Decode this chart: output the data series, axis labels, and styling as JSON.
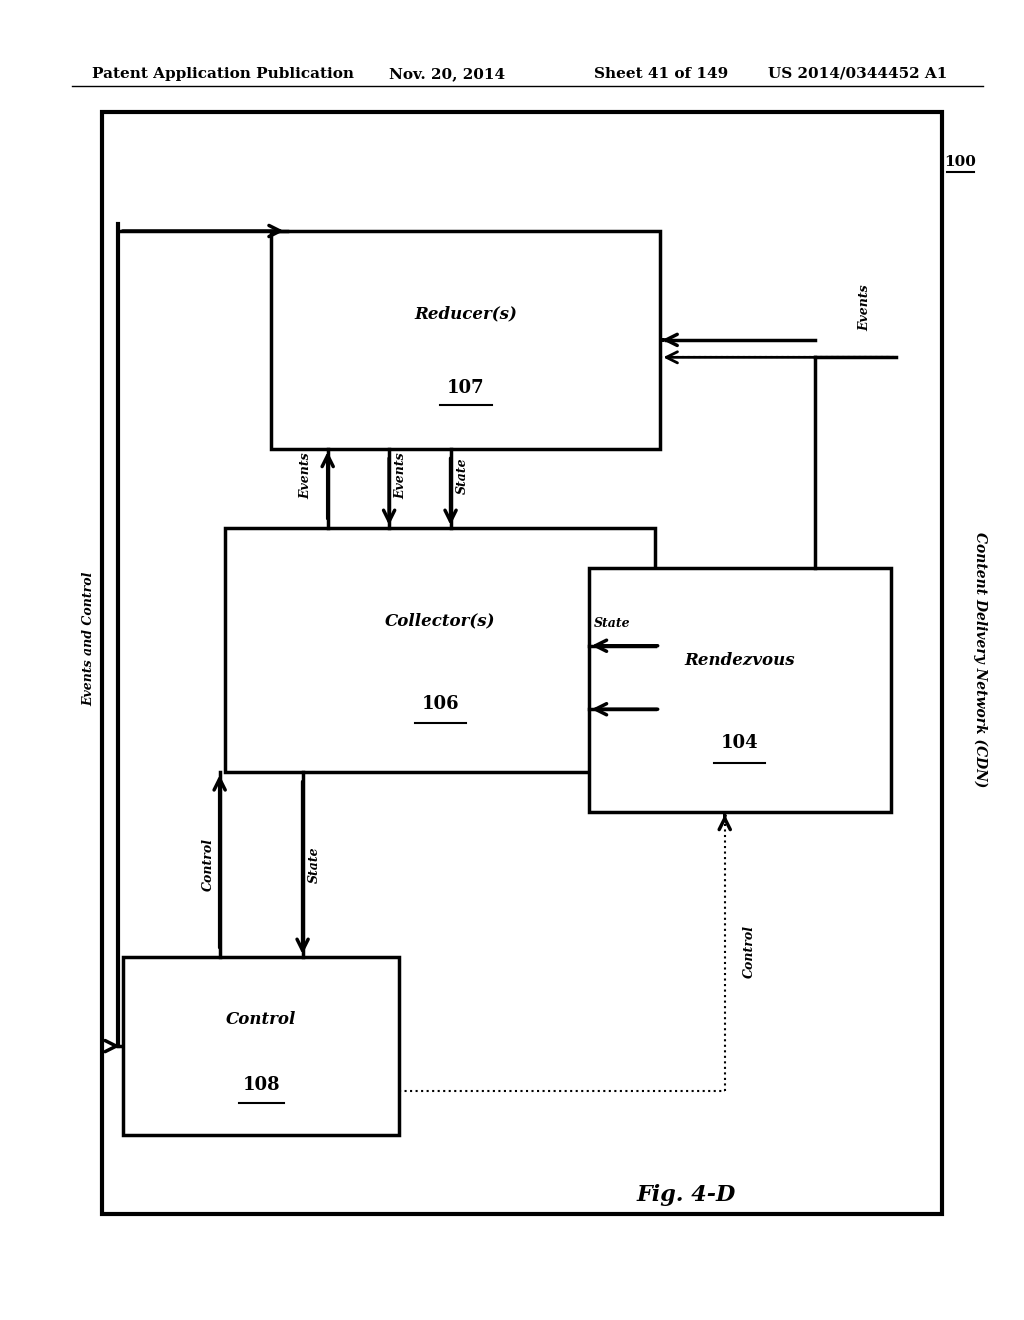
{
  "bg_color": "#ffffff",
  "header_text": "Patent Application Publication",
  "header_date": "Nov. 20, 2014",
  "header_sheet": "Sheet 41 of 149",
  "header_patent": "US 2014/0344452 A1",
  "fig_label": "Fig. 4-D",
  "cdn_label": "Content Delivery Network (CDN)",
  "cdn_number": "100",
  "reducer_label": "Reducer(s)",
  "reducer_number": "107",
  "collector_label": "Collector(s)",
  "collector_number": "106",
  "control_label": "Control",
  "control_number": "108",
  "rendezvous_label": "Rendezvous",
  "rendezvous_number": "104"
}
